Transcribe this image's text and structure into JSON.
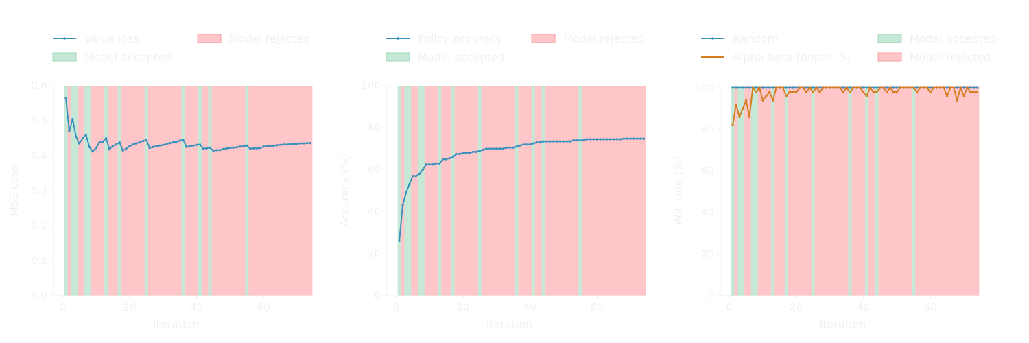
{
  "colors": {
    "background": "#ffffff",
    "text": "#eef1f6",
    "accepted": "#c6e8d6",
    "rejected": "#fec6c9",
    "accepted_border": "#9fd9b8",
    "rejected_border": "#f5a0a6",
    "blue": "#3890bd",
    "orange": "#d47f1f",
    "axis": "#eef1f6"
  },
  "chart_data": [
    {
      "type": "line",
      "xlabel": "Iteration",
      "ylabel": "MSE Loss",
      "xlim": [
        -2.7,
        74.5
      ],
      "ylim": [
        0.0,
        0.6
      ],
      "xticks": [
        "0",
        "20",
        "40",
        "60"
      ],
      "yticks": [
        "0.0",
        "0.1",
        "0.2",
        "0.3",
        "0.4",
        "0.5",
        "0.6"
      ],
      "legend": {
        "placement": "top",
        "entries": [
          {
            "kind": "line",
            "label": "Value loss",
            "color": "#3890bd"
          },
          {
            "kind": "patch",
            "label": "Model rejected",
            "color": "#fec6c9"
          },
          {
            "kind": "patch",
            "label": "Model accepted",
            "color": "#c6e8d6"
          }
        ]
      },
      "shading": {
        "range": [
          0.5,
          74.5
        ],
        "accepted_iterations": [
          1,
          3,
          4,
          7,
          8,
          13,
          17,
          25,
          36,
          41,
          44,
          55
        ]
      },
      "series": [
        {
          "name": "Value loss",
          "color": "#3890bd",
          "x": [
            1,
            2,
            3,
            4,
            5,
            6,
            7,
            8,
            9,
            10,
            11,
            12,
            13,
            14,
            15,
            16,
            17,
            18,
            19,
            20,
            21,
            22,
            23,
            24,
            25,
            26,
            27,
            28,
            29,
            30,
            31,
            32,
            33,
            34,
            35,
            36,
            37,
            38,
            39,
            40,
            41,
            42,
            43,
            44,
            45,
            46,
            47,
            48,
            49,
            50,
            51,
            52,
            53,
            54,
            55,
            56,
            57,
            58,
            59,
            60,
            61,
            62,
            63,
            64,
            65,
            66,
            67,
            68,
            69,
            70,
            71,
            72,
            73,
            74
          ],
          "values": [
            0.565,
            0.47,
            0.505,
            0.455,
            0.435,
            0.45,
            0.46,
            0.425,
            0.412,
            0.422,
            0.438,
            0.44,
            0.45,
            0.418,
            0.428,
            0.432,
            0.438,
            0.415,
            0.42,
            0.427,
            0.432,
            0.435,
            0.438,
            0.442,
            0.445,
            0.422,
            0.425,
            0.427,
            0.429,
            0.431,
            0.433,
            0.436,
            0.438,
            0.44,
            0.443,
            0.446,
            0.425,
            0.427,
            0.429,
            0.431,
            0.432,
            0.42,
            0.421,
            0.423,
            0.414,
            0.416,
            0.416,
            0.419,
            0.421,
            0.422,
            0.423,
            0.424,
            0.426,
            0.427,
            0.429,
            0.42,
            0.421,
            0.421,
            0.422,
            0.426,
            0.427,
            0.428,
            0.428,
            0.43,
            0.431,
            0.432,
            0.432,
            0.433,
            0.433,
            0.434,
            0.435,
            0.435,
            0.436,
            0.436
          ]
        }
      ]
    },
    {
      "type": "line",
      "xlabel": "Iteration",
      "ylabel": "Accuracy (%)",
      "xlim": [
        -2.7,
        74.5
      ],
      "ylim": [
        0,
        100
      ],
      "xticks": [
        "0",
        "20",
        "40",
        "60"
      ],
      "yticks": [
        "0",
        "20",
        "40",
        "60",
        "80",
        "100"
      ],
      "legend": {
        "placement": "top",
        "entries": [
          {
            "kind": "line",
            "label": "Policy accuracy",
            "color": "#3890bd"
          },
          {
            "kind": "patch",
            "label": "Model rejected",
            "color": "#fec6c9"
          },
          {
            "kind": "patch",
            "label": "Model accepted",
            "color": "#c6e8d6"
          }
        ]
      },
      "shading": {
        "range": [
          0.5,
          74.5
        ],
        "accepted_iterations": [
          1,
          3,
          4,
          7,
          8,
          13,
          17,
          25,
          36,
          41,
          44,
          55
        ]
      },
      "series": [
        {
          "name": "Policy accuracy",
          "color": "#3890bd",
          "x": [
            1,
            2,
            3,
            4,
            5,
            6,
            7,
            8,
            9,
            10,
            11,
            12,
            13,
            14,
            15,
            16,
            17,
            18,
            19,
            20,
            21,
            22,
            23,
            24,
            25,
            26,
            27,
            28,
            29,
            30,
            31,
            32,
            33,
            34,
            35,
            36,
            37,
            38,
            39,
            40,
            41,
            42,
            43,
            44,
            45,
            46,
            47,
            48,
            49,
            50,
            51,
            52,
            53,
            54,
            55,
            56,
            57,
            58,
            59,
            60,
            61,
            62,
            63,
            64,
            65,
            66,
            67,
            68,
            69,
            70,
            71,
            72,
            73,
            74
          ],
          "values": [
            26,
            43,
            49,
            53,
            57,
            57,
            58,
            60,
            62.5,
            62.5,
            62.5,
            63,
            63,
            65,
            65,
            65.5,
            66,
            67.5,
            67.5,
            68,
            68,
            68,
            68.5,
            68.5,
            69,
            69.5,
            70,
            70,
            70,
            70,
            70,
            70,
            70.5,
            70.5,
            70.5,
            71,
            71.5,
            72,
            72,
            72,
            72.5,
            73,
            73,
            73.5,
            73.5,
            73.5,
            73.5,
            73.5,
            73.5,
            73.5,
            73.5,
            73.5,
            74,
            74,
            74,
            74,
            74.5,
            74.5,
            74.5,
            74.5,
            74.5,
            74.5,
            74.5,
            74.5,
            74.5,
            74.5,
            74.5,
            74.8,
            74.8,
            74.8,
            74.8,
            74.8,
            74.8,
            74.8
          ]
        }
      ]
    },
    {
      "type": "line",
      "xlabel": "Iteration",
      "ylabel": "Win rate (%)",
      "xlim": [
        -2.7,
        74.5
      ],
      "ylim": [
        0,
        101
      ],
      "xticks": [
        "0",
        "20",
        "40",
        "60"
      ],
      "yticks": [
        "0",
        "20",
        "40",
        "60",
        "80",
        "100"
      ],
      "legend": {
        "placement": "top",
        "entries": [
          {
            "kind": "line",
            "label": "Random",
            "color": "#3890bd"
          },
          {
            "kind": "patch",
            "label": "Model accepted",
            "color": "#c6e8d6"
          },
          {
            "kind": "line",
            "label": "Alpha-beta (depth: 5)",
            "color": "#d47f1f"
          },
          {
            "kind": "patch",
            "label": "Model rejected",
            "color": "#fec6c9"
          }
        ]
      },
      "shading": {
        "range": [
          0.5,
          74.5
        ],
        "accepted_iterations": [
          1,
          3,
          4,
          7,
          8,
          13,
          17,
          25,
          36,
          41,
          44,
          55
        ]
      },
      "series": [
        {
          "name": "Random",
          "color": "#3890bd",
          "x": [
            1,
            2,
            3,
            4,
            5,
            6,
            7,
            8,
            9,
            10,
            11,
            12,
            13,
            14,
            15,
            16,
            17,
            18,
            19,
            20,
            21,
            22,
            23,
            24,
            25,
            26,
            27,
            28,
            29,
            30,
            31,
            32,
            33,
            34,
            35,
            36,
            37,
            38,
            39,
            40,
            41,
            42,
            43,
            44,
            45,
            46,
            47,
            48,
            49,
            50,
            51,
            52,
            53,
            54,
            55,
            56,
            57,
            58,
            59,
            60,
            61,
            62,
            63,
            64,
            65,
            66,
            67,
            68,
            69,
            70,
            71,
            72,
            73,
            74
          ],
          "values": [
            100,
            100,
            100,
            100,
            100,
            100,
            100,
            100,
            100,
            100,
            100,
            100,
            100,
            100,
            100,
            100,
            100,
            100,
            100,
            100,
            100,
            100,
            100,
            100,
            100,
            100,
            100,
            100,
            100,
            100,
            100,
            100,
            100,
            100,
            100,
            100,
            100,
            100,
            100,
            100,
            100,
            100,
            100,
            100,
            100,
            100,
            100,
            100,
            100,
            100,
            100,
            100,
            100,
            100,
            100,
            100,
            100,
            100,
            100,
            100,
            100,
            100,
            100,
            100,
            100,
            100,
            100,
            100,
            100,
            100,
            100,
            100,
            100,
            100
          ]
        },
        {
          "name": "Alpha-beta (depth: 5)",
          "color": "#d47f1f",
          "x": [
            1,
            2,
            3,
            4,
            5,
            6,
            7,
            8,
            9,
            10,
            11,
            12,
            13,
            14,
            15,
            16,
            17,
            18,
            19,
            20,
            21,
            22,
            23,
            24,
            25,
            26,
            27,
            28,
            29,
            30,
            31,
            32,
            33,
            34,
            35,
            36,
            37,
            38,
            39,
            40,
            41,
            42,
            43,
            44,
            45,
            46,
            47,
            48,
            49,
            50,
            51,
            52,
            53,
            54,
            55,
            56,
            57,
            58,
            59,
            60,
            61,
            62,
            63,
            64,
            65,
            66,
            67,
            68,
            69,
            70,
            71,
            72,
            73,
            74
          ],
          "values": [
            82,
            92,
            86,
            90,
            94,
            86,
            100,
            98,
            100,
            94,
            96,
            98,
            94,
            100,
            100,
            100,
            96,
            98,
            98,
            98,
            100,
            100,
            98,
            100,
            98,
            100,
            98,
            100,
            100,
            100,
            100,
            100,
            100,
            98,
            100,
            98,
            100,
            100,
            100,
            98,
            96,
            100,
            98,
            98,
            100,
            100,
            98,
            100,
            98,
            98,
            100,
            100,
            100,
            100,
            100,
            98,
            100,
            100,
            100,
            98,
            100,
            100,
            100,
            100,
            96,
            100,
            100,
            94,
            100,
            96,
            100,
            98,
            98,
            98
          ]
        }
      ]
    }
  ]
}
